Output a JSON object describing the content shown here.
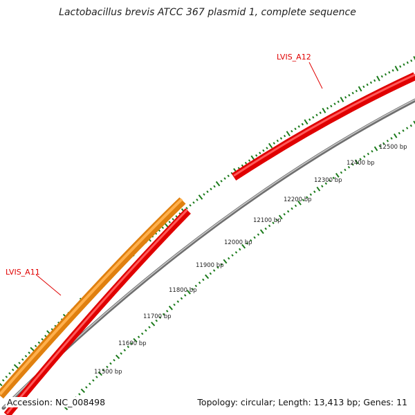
{
  "title": "Lactobacillus brevis ATCC 367 plasmid 1, complete sequence",
  "footer": {
    "accession": "Accession: NC_008498",
    "summary": "Topology: circular; Length: 13,413 bp; Genes: 11"
  },
  "colors": {
    "forward_gene": "#f5941e",
    "reverse_gene": "#ff0000",
    "backbone": "#888888",
    "ticks": "#1a7a1a",
    "gene_label": "#e00000"
  },
  "gene_labels": [
    {
      "name": "LVIS_A11",
      "strand": "forward"
    },
    {
      "name": "LVIS_A12",
      "strand": "reverse"
    }
  ],
  "scale_labels": [
    "11500 bp",
    "11600 bp",
    "11700 bp",
    "11800 bp",
    "11900 bp",
    "12000 bp",
    "12100 bp",
    "12200 bp",
    "12300 bp",
    "12400 bp",
    "12500 bp"
  ]
}
